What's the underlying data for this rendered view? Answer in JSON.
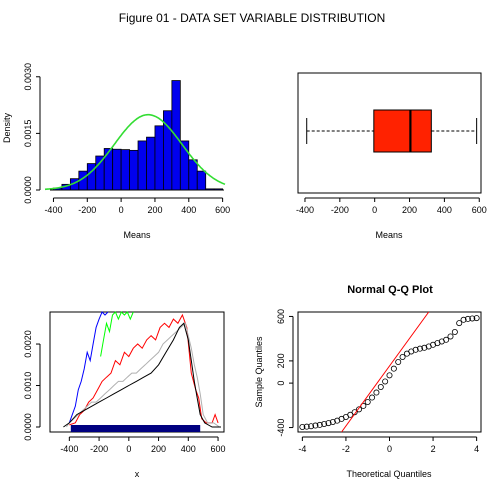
{
  "figure": {
    "title": "Figure 01 - DATA SET VARIABLE DISTRIBUTION"
  },
  "chart_data": [
    {
      "id": "histogram",
      "type": "bar",
      "title": "",
      "xlabel": "Means",
      "ylabel": "Density",
      "xlim": [
        -450,
        620
      ],
      "ylim": [
        0,
        0.0031
      ],
      "xticks": [
        "-400",
        "-200",
        "0",
        "200",
        "400",
        "600"
      ],
      "yticks": [
        "0.0000",
        "0.0015",
        "0.0030"
      ],
      "bins": [
        {
          "x0": -400,
          "x1": -350,
          "value": 5e-05
        },
        {
          "x0": -350,
          "x1": -300,
          "value": 0.00015
        },
        {
          "x0": -300,
          "x1": -250,
          "value": 0.0003
        },
        {
          "x0": -250,
          "x1": -200,
          "value": 0.0005
        },
        {
          "x0": -200,
          "x1": -150,
          "value": 0.0007
        },
        {
          "x0": -150,
          "x1": -100,
          "value": 0.0009
        },
        {
          "x0": -100,
          "x1": -50,
          "value": 0.0011
        },
        {
          "x0": -50,
          "x1": 0,
          "value": 0.00108
        },
        {
          "x0": 0,
          "x1": 50,
          "value": 0.00107
        },
        {
          "x0": 50,
          "x1": 100,
          "value": 0.00105
        },
        {
          "x0": 100,
          "x1": 150,
          "value": 0.0013
        },
        {
          "x0": 150,
          "x1": 200,
          "value": 0.0014
        },
        {
          "x0": 200,
          "x1": 250,
          "value": 0.0017
        },
        {
          "x0": 250,
          "x1": 300,
          "value": 0.0021
        },
        {
          "x0": 300,
          "x1": 350,
          "value": 0.0029
        },
        {
          "x0": 350,
          "x1": 400,
          "value": 0.0013
        },
        {
          "x0": 400,
          "x1": 450,
          "value": 0.0008
        },
        {
          "x0": 450,
          "x1": 500,
          "value": 0.0005
        },
        {
          "x0": 500,
          "x1": 550,
          "value": 3e-05
        },
        {
          "x0": 550,
          "x1": 600,
          "value": 3e-05
        }
      ],
      "normal_curve": {
        "mean": 160,
        "sd": 200,
        "color": "#33dd33"
      },
      "bar_color": "#0000ee"
    },
    {
      "id": "boxplot",
      "type": "box",
      "title": "",
      "xlabel": "Means",
      "xlim": [
        -440,
        610
      ],
      "xticks": [
        "-400",
        "-200",
        "0",
        "200",
        "400",
        "600"
      ],
      "stats": {
        "min": -390,
        "q1": -5,
        "median": 205,
        "q3": 325,
        "max": 585
      },
      "box_color": "#ff2200"
    },
    {
      "id": "traces",
      "type": "line",
      "title": "",
      "xlabel": "x",
      "ylabel": "",
      "xlim": [
        -530,
        640
      ],
      "ylim": [
        0,
        0.0027
      ],
      "xticks": [
        "-400",
        "-200",
        "0",
        "200",
        "400",
        "600"
      ],
      "yticks": [
        "0.0000",
        "0.0010",
        "0.0020"
      ],
      "series": [
        {
          "color": "#0000ff",
          "points": [
            [
              -400,
              0.0001
            ],
            [
              -380,
              0.0003
            ],
            [
              -360,
              0.0005
            ],
            [
              -340,
              0.0009
            ],
            [
              -320,
              0.0011
            ],
            [
              -300,
              0.0014
            ],
            [
              -280,
              0.0018
            ],
            [
              -260,
              0.0016
            ],
            [
              -240,
              0.002
            ],
            [
              -220,
              0.0024
            ],
            [
              -200,
              0.0026
            ],
            [
              -180,
              0.0029
            ],
            [
              -160,
              0.0027
            ],
            [
              -140,
              0.0029
            ]
          ]
        },
        {
          "color": "#00ff00",
          "points": [
            [
              -190,
              0.0017
            ],
            [
              -170,
              0.0021
            ],
            [
              -150,
              0.0025
            ],
            [
              -130,
              0.0023
            ],
            [
              -110,
              0.0027
            ],
            [
              -90,
              0.0029
            ],
            [
              -70,
              0.0026
            ],
            [
              -50,
              0.0029
            ],
            [
              -30,
              0.0027
            ],
            [
              -10,
              0.0029
            ],
            [
              10,
              0.0026
            ],
            [
              30,
              0.0029
            ]
          ]
        },
        {
          "color": "#ff0000",
          "points": [
            [
              -400,
              5e-05
            ],
            [
              -360,
              0.0001
            ],
            [
              -330,
              0.0003
            ],
            [
              -300,
              0.0004
            ],
            [
              -270,
              0.0006
            ],
            [
              -240,
              0.0007
            ],
            [
              -210,
              0.0009
            ],
            [
              -180,
              0.0011
            ],
            [
              -150,
              0.0012
            ],
            [
              -120,
              0.0013
            ],
            [
              -90,
              0.0016
            ],
            [
              -60,
              0.0015
            ],
            [
              -30,
              0.0018
            ],
            [
              0,
              0.0017
            ],
            [
              30,
              0.0019
            ],
            [
              60,
              0.002
            ],
            [
              90,
              0.0019
            ],
            [
              120,
              0.0021
            ],
            [
              150,
              0.0022
            ],
            [
              180,
              0.0021
            ],
            [
              210,
              0.0024
            ],
            [
              240,
              0.0025
            ],
            [
              270,
              0.0024
            ],
            [
              300,
              0.0026
            ],
            [
              330,
              0.0025
            ],
            [
              360,
              0.0027
            ],
            [
              390,
              0.0024
            ],
            [
              420,
              0.0013
            ],
            [
              450,
              0.0009
            ],
            [
              470,
              0.0007
            ],
            [
              490,
              0.0002
            ],
            [
              520,
              0.0001
            ],
            [
              560,
              0.0001
            ],
            [
              580,
              0.0003
            ],
            [
              600,
              0.0001
            ]
          ]
        },
        {
          "color": "#b0b0b0",
          "points": [
            [
              -420,
              0.0
            ],
            [
              -400,
              0.0001
            ],
            [
              -370,
              0.0002
            ],
            [
              -340,
              0.0003
            ],
            [
              -310,
              0.0004
            ],
            [
              -280,
              0.0005
            ],
            [
              -250,
              0.0006
            ],
            [
              -220,
              0.0006
            ],
            [
              -190,
              0.0007
            ],
            [
              -160,
              0.0008
            ],
            [
              -130,
              0.0009
            ],
            [
              -100,
              0.001
            ],
            [
              -70,
              0.0011
            ],
            [
              -40,
              0.0011
            ],
            [
              -10,
              0.0012
            ],
            [
              20,
              0.0013
            ],
            [
              50,
              0.0013
            ],
            [
              80,
              0.0014
            ],
            [
              110,
              0.0015
            ],
            [
              140,
              0.0016
            ],
            [
              170,
              0.0017
            ],
            [
              200,
              0.0018
            ],
            [
              230,
              0.002
            ],
            [
              260,
              0.0021
            ],
            [
              290,
              0.0022
            ],
            [
              320,
              0.0023
            ],
            [
              350,
              0.0024
            ],
            [
              380,
              0.0025
            ],
            [
              400,
              0.0022
            ],
            [
              420,
              0.0019
            ],
            [
              440,
              0.0015
            ],
            [
              460,
              0.0012
            ],
            [
              480,
              0.0008
            ],
            [
              500,
              0.0003
            ],
            [
              530,
              0.0001
            ],
            [
              570,
              0.0001
            ],
            [
              610,
              0.0
            ]
          ]
        },
        {
          "color": "#000000",
          "points": [
            [
              -440,
              0.0
            ],
            [
              -400,
              0.0001
            ],
            [
              -350,
              0.0003
            ],
            [
              -300,
              0.0004
            ],
            [
              -250,
              0.0005
            ],
            [
              -200,
              0.0006
            ],
            [
              -150,
              0.0007
            ],
            [
              -100,
              0.0008
            ],
            [
              -50,
              0.0009
            ],
            [
              0,
              0.001
            ],
            [
              50,
              0.0011
            ],
            [
              100,
              0.0012
            ],
            [
              150,
              0.0013
            ],
            [
              200,
              0.0015
            ],
            [
              250,
              0.0018
            ],
            [
              300,
              0.0021
            ],
            [
              340,
              0.0024
            ],
            [
              370,
              0.0025
            ],
            [
              400,
              0.0021
            ],
            [
              420,
              0.0016
            ],
            [
              440,
              0.0011
            ],
            [
              460,
              0.0007
            ],
            [
              480,
              0.0003
            ],
            [
              510,
              0.0001
            ],
            [
              560,
              0.0
            ],
            [
              620,
              0.0
            ]
          ]
        }
      ],
      "rug": {
        "from": -390,
        "to": 480,
        "color": "#000080"
      }
    },
    {
      "id": "qqplot",
      "type": "scatter",
      "title": "Normal Q-Q Plot",
      "xlabel": "Theoretical Quantiles",
      "ylabel": "Sample Quantiles",
      "xlim": [
        -4.2,
        4.2
      ],
      "ylim": [
        -440,
        640
      ],
      "xticks": [
        "-4",
        "-2",
        "0",
        "2",
        "4"
      ],
      "yticks": [
        "-400",
        "0",
        "200",
        "600"
      ],
      "points": [
        [
          -4.0,
          -395
        ],
        [
          -3.8,
          -392
        ],
        [
          -3.6,
          -388
        ],
        [
          -3.4,
          -382
        ],
        [
          -3.2,
          -376
        ],
        [
          -3.0,
          -368
        ],
        [
          -2.8,
          -360
        ],
        [
          -2.6,
          -350
        ],
        [
          -2.4,
          -338
        ],
        [
          -2.2,
          -322
        ],
        [
          -2.0,
          -305
        ],
        [
          -1.8,
          -285
        ],
        [
          -1.6,
          -262
        ],
        [
          -1.4,
          -236
        ],
        [
          -1.2,
          -205
        ],
        [
          -1.0,
          -170
        ],
        [
          -0.8,
          -130
        ],
        [
          -0.6,
          -85
        ],
        [
          -0.4,
          -35
        ],
        [
          -0.2,
          15
        ],
        [
          0.0,
          70
        ],
        [
          0.2,
          130
        ],
        [
          0.4,
          190
        ],
        [
          0.6,
          235
        ],
        [
          0.8,
          265
        ],
        [
          1.0,
          285
        ],
        [
          1.2,
          300
        ],
        [
          1.4,
          310
        ],
        [
          1.6,
          318
        ],
        [
          1.8,
          330
        ],
        [
          2.0,
          345
        ],
        [
          2.2,
          360
        ],
        [
          2.4,
          375
        ],
        [
          2.6,
          390
        ],
        [
          2.8,
          420
        ],
        [
          3.0,
          460
        ],
        [
          3.2,
          540
        ],
        [
          3.4,
          570
        ],
        [
          3.6,
          578
        ],
        [
          3.8,
          582
        ],
        [
          4.0,
          585
        ]
      ],
      "ref_line": {
        "p1": [
          -2.2,
          -440
        ],
        "p2": [
          1.8,
          640
        ],
        "color": "#ff0000"
      }
    }
  ]
}
